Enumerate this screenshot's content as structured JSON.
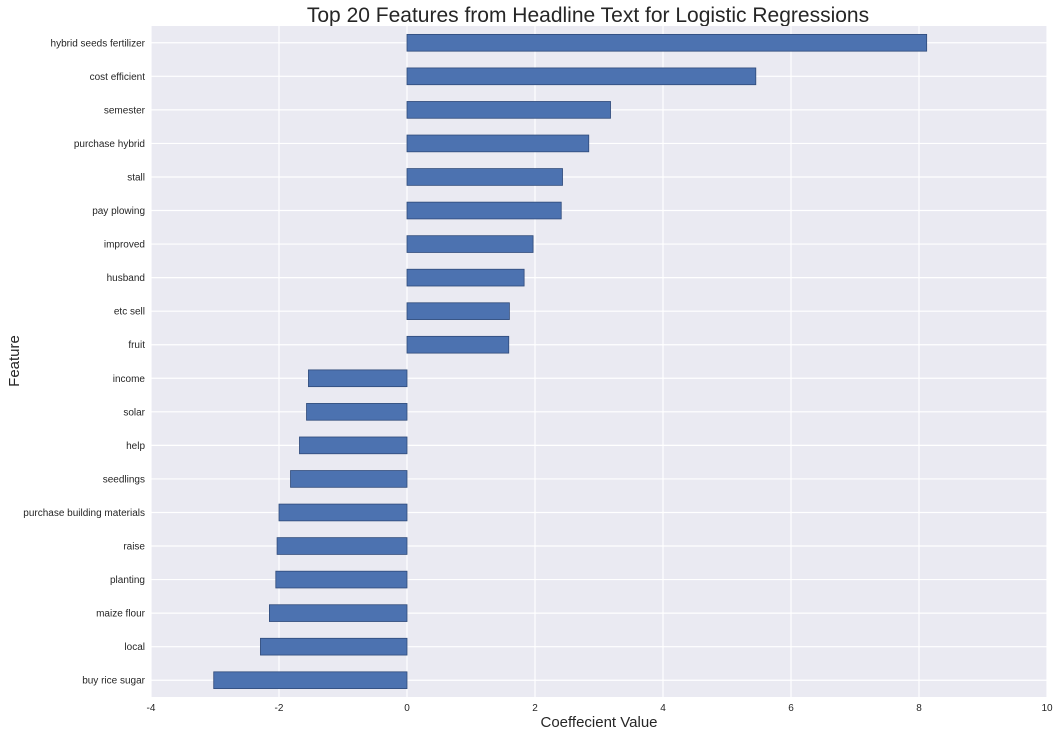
{
  "chart_data": {
    "type": "bar",
    "orientation": "horizontal",
    "title": "Top 20 Features from Headline Text for Logistic Regressions",
    "xlabel": "Coeffecient Value",
    "ylabel": "Feature",
    "xlim": [
      -4,
      10
    ],
    "xticks": [
      -4,
      -2,
      0,
      2,
      4,
      6,
      8,
      10
    ],
    "grid": true,
    "colors": {
      "bar": "#4c72b0",
      "bar_edge": "#2f4a7a",
      "plot_bg": "#eaeaf2",
      "grid": "#ffffff"
    },
    "categories": [
      "hybrid seeds fertilizer",
      "cost efficient",
      "semester",
      "purchase hybrid",
      "stall",
      "pay plowing",
      "improved",
      "husband",
      "etc sell",
      "fruit",
      "income",
      "solar",
      "help",
      "seedlings",
      "purchase building materials",
      "raise",
      "planting",
      "maize flour",
      "local",
      "buy rice sugar"
    ],
    "values": [
      8.12,
      5.45,
      3.18,
      2.84,
      2.43,
      2.41,
      1.97,
      1.83,
      1.6,
      1.59,
      -1.54,
      -1.57,
      -1.68,
      -1.82,
      -2.0,
      -2.03,
      -2.05,
      -2.15,
      -2.29,
      -3.02
    ]
  }
}
